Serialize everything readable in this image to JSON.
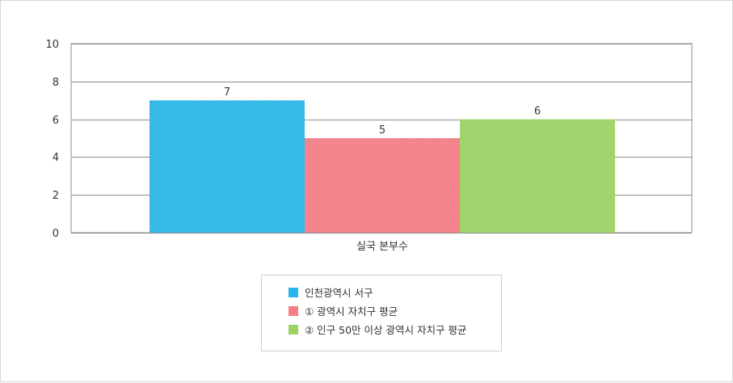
{
  "chart_data": {
    "type": "bar",
    "categories": [
      "실국 본부수"
    ],
    "series": [
      {
        "name": "인천광역시 서구",
        "values": [
          7
        ],
        "color": "#29b6e8"
      },
      {
        "name": "① 광역시 자치구 평균",
        "values": [
          5
        ],
        "color": "#f47e86"
      },
      {
        "name": "② 인구 50만 이상 광역시 자치구 평균",
        "values": [
          6
        ],
        "color": "#9dd363"
      }
    ],
    "ylim": [
      0,
      10
    ],
    "yticks": [
      0,
      2,
      4,
      6,
      8,
      10
    ],
    "grid": true,
    "legend_position": "bottom-center",
    "data_labels": true
  }
}
